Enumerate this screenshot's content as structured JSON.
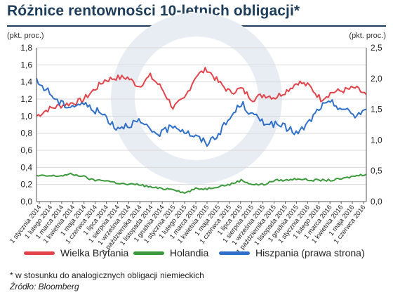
{
  "title": "Różnice rentowności 10-letnich obligacji*",
  "footnote": "* w stosunku do analogicznych obligacji niemieckich",
  "source": "Źródło: Bloomberg",
  "chart_data": {
    "type": "line",
    "left_axis": {
      "unit_label": "(pkt. proc.)",
      "ylim": [
        0,
        1.8
      ],
      "ticks": [
        "0,0",
        "0,2",
        "0,4",
        "0,6",
        "0,8",
        "1,0",
        "1,2",
        "1,4",
        "1,6",
        "1,8"
      ]
    },
    "right_axis": {
      "unit_label": "(pkt. proc.)",
      "ylim": [
        0,
        2.5
      ],
      "ticks": [
        "0,0",
        "0,5",
        "1,0",
        "1,5",
        "2,0",
        "2,5"
      ]
    },
    "x_labels": [
      "1 stycznia 2014",
      "1 lutego 2014",
      "1 marca 2014",
      "1 kwietnia 2014",
      "1 maja 2014",
      "1 czerwca 2014",
      "1 lipca 2014",
      "1 sierpnia 2014",
      "1 września 2014",
      "1 października 2014",
      "1 listopada 2014",
      "1 grudnia 2014",
      "1 stycznia 2015",
      "1 lutego 2015",
      "1 marca 2015",
      "1 kwietnia 2015",
      "1 maja 2015",
      "1 czerwca 2015",
      "1 lipca 2015",
      "1 sierpnia 2015",
      "1 września 2015",
      "1 października 2015",
      "1 listopada 2015",
      "1 grudnia 2015",
      "1 stycznia 2016",
      "1 lutego 2016",
      "1 marca 2016",
      "1 kwietnia 2016",
      "1 maja 2016",
      "1 czerwca 2016"
    ],
    "series": [
      {
        "name": "Wielka Brytania",
        "axis": "left",
        "color": "#e2444c",
        "values": [
          1.0,
          1.08,
          1.12,
          1.15,
          1.18,
          1.3,
          1.42,
          1.45,
          1.45,
          1.35,
          1.47,
          1.33,
          1.1,
          1.2,
          1.47,
          1.55,
          1.4,
          1.28,
          1.32,
          1.2,
          1.25,
          1.22,
          1.3,
          1.4,
          1.35,
          1.2,
          1.28,
          1.3,
          1.33,
          1.25
        ]
      },
      {
        "name": "Holandia",
        "axis": "left",
        "color": "#3c9a3c",
        "values": [
          0.3,
          0.3,
          0.3,
          0.32,
          0.3,
          0.25,
          0.25,
          0.22,
          0.2,
          0.2,
          0.17,
          0.15,
          0.15,
          0.1,
          0.15,
          0.15,
          0.18,
          0.2,
          0.25,
          0.2,
          0.2,
          0.25,
          0.25,
          0.27,
          0.25,
          0.25,
          0.25,
          0.27,
          0.3,
          0.32
        ]
      },
      {
        "name": "Hiszpania (prawa strona)",
        "axis": "right",
        "color": "#3070c8",
        "values": [
          1.95,
          1.8,
          1.6,
          1.55,
          1.6,
          1.5,
          1.4,
          1.2,
          1.25,
          1.3,
          1.15,
          1.1,
          1.25,
          1.15,
          1.05,
          0.95,
          1.1,
          1.35,
          1.6,
          1.4,
          1.3,
          1.25,
          1.2,
          1.1,
          1.3,
          1.55,
          1.6,
          1.5,
          1.4,
          1.5
        ]
      }
    ],
    "grid": true
  }
}
